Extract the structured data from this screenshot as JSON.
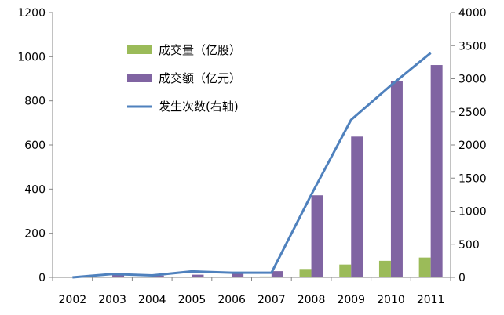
{
  "chart_data": {
    "type": "bar",
    "categories": [
      "2002",
      "2003",
      "2004",
      "2005",
      "2006",
      "2007",
      "2008",
      "2009",
      "2010",
      "2011"
    ],
    "series": [
      {
        "name": "成交量（亿股）",
        "type": "bar",
        "axis": "left",
        "color": "#9bbb59",
        "values": [
          0,
          2,
          2,
          2,
          3,
          4,
          38,
          58,
          75,
          90
        ]
      },
      {
        "name": "成交额（亿元）",
        "type": "bar",
        "axis": "left",
        "color": "#8064a2",
        "values": [
          0,
          20,
          8,
          12,
          20,
          28,
          372,
          638,
          888,
          962
        ]
      },
      {
        "name": "发生次数(右轴)",
        "type": "line",
        "axis": "right",
        "color": "#4f81bd",
        "values": [
          0,
          50,
          30,
          90,
          70,
          70,
          1250,
          2380,
          2900,
          3390
        ]
      }
    ],
    "y_left": {
      "min": 0,
      "max": 1200,
      "ticks": [
        0,
        200,
        400,
        600,
        800,
        1000,
        1200
      ]
    },
    "y_right": {
      "min": 0,
      "max": 4000,
      "ticks": [
        0,
        500,
        1000,
        1500,
        2000,
        2500,
        3000,
        3500,
        4000
      ]
    },
    "grid": false,
    "legend_position": "top-left-inside"
  }
}
